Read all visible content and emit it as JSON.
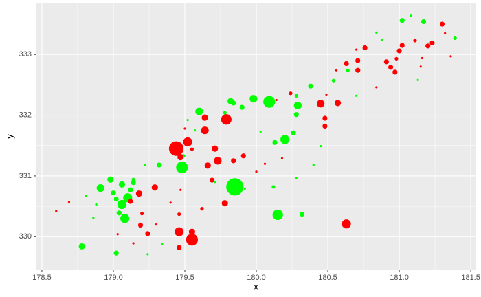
{
  "chart_data": {
    "type": "scatter",
    "x_label": "x",
    "y_label": "y",
    "xlim": [
      178.457,
      181.538
    ],
    "ylim": [
      329.46,
      333.84
    ],
    "xticks": [
      178.5,
      {
        "value": 179,
        "label": "179.0"
      },
      179.5,
      {
        "value": 180,
        "label": "180.0"
      },
      180.5,
      {
        "value": 181,
        "label": "181.0"
      },
      181.5
    ],
    "yticks": [
      330,
      331,
      332,
      333
    ],
    "grid": true,
    "series": [
      {
        "color": "#00ff00",
        "x": [
          181.02,
          181.08,
          181.17,
          181.39,
          181.13,
          180.84,
          180.88,
          180.7,
          180.64,
          180.54,
          180.38,
          180.28,
          180.29,
          180.09,
          179.98,
          179.9,
          179.84,
          179.82,
          179.78,
          179.6,
          179.52,
          180.28,
          180.26,
          180.2,
          180.13,
          180.03,
          180.45,
          180.4,
          180.28,
          180.12,
          179.85,
          179.48,
          179.49,
          179.32,
          179.22,
          178.98,
          179.0,
          179.06,
          179.12,
          179.14,
          178.91,
          179.1,
          179.06,
          179.02,
          179.04,
          179.08,
          178.88,
          178.86,
          178.78,
          178.81,
          179.02,
          179.24,
          179.34,
          180.15,
          180.32,
          179.71,
          179.92,
          179.66,
          179.57,
          179.14
        ],
        "y": [
          333.56,
          333.64,
          333.54,
          333.27,
          332.58,
          333.36,
          333.24,
          332.32,
          332.74,
          332.57,
          332.48,
          332.32,
          332.16,
          332.22,
          332.27,
          332.13,
          332.2,
          332.23,
          332.04,
          332.06,
          331.92,
          332.01,
          331.71,
          331.6,
          331.55,
          331.73,
          331.49,
          331.18,
          330.97,
          330.82,
          330.82,
          331.14,
          331.33,
          331.18,
          331.18,
          330.94,
          330.72,
          330.86,
          330.77,
          330.89,
          330.8,
          330.64,
          330.53,
          330.62,
          330.39,
          330.3,
          330.53,
          330.31,
          329.84,
          330.67,
          329.73,
          329.71,
          329.88,
          330.36,
          330.37,
          330.9,
          330.79,
          331.18,
          331.75,
          330.94
        ],
        "size": [
          3,
          1,
          3,
          2,
          1,
          1,
          1,
          1,
          2,
          2,
          3,
          2,
          5,
          8,
          5,
          3,
          3,
          4,
          2,
          5,
          1,
          3,
          3,
          6,
          3,
          1,
          1,
          1,
          1,
          2,
          12,
          8,
          2,
          3,
          1,
          4,
          3,
          4,
          3,
          3,
          5,
          6,
          6,
          3,
          3,
          6,
          1,
          1,
          4,
          1,
          3,
          1,
          1,
          7,
          3,
          1,
          1,
          1,
          1,
          2
        ]
      },
      {
        "color": "#ff0000",
        "x": [
          181.3,
          181.32,
          181.23,
          181.2,
          181.11,
          181.02,
          181.0,
          180.98,
          180.94,
          180.91,
          180.97,
          181.16,
          181.15,
          181.36,
          180.76,
          180.7,
          180.71,
          180.71,
          180.63,
          180.56,
          180.49,
          180.57,
          180.45,
          180.48,
          180.48,
          180.24,
          179.79,
          179.64,
          179.64,
          179.55,
          179.52,
          179.44,
          179.47,
          179.5,
          179.71,
          179.73,
          179.66,
          179.69,
          179.84,
          179.91,
          179.78,
          179.55,
          179.55,
          179.46,
          179.62,
          179.46,
          179.47,
          179.4,
          179.29,
          179.18,
          179.12,
          179.2,
          179.19,
          179.24,
          179.14,
          179.3,
          179.46,
          179.03,
          178.69,
          178.6,
          180.63,
          180.0,
          180.06,
          180.18,
          180.84,
          180.14
        ],
        "y": [
          333.5,
          333.35,
          333.19,
          333.14,
          333.23,
          333.15,
          333.06,
          332.93,
          332.79,
          332.88,
          332.71,
          332.94,
          332.8,
          332.97,
          333.11,
          333.08,
          332.9,
          332.74,
          332.85,
          332.74,
          332.34,
          332.2,
          332.19,
          331.95,
          331.82,
          332.36,
          331.93,
          331.96,
          331.75,
          331.44,
          331.56,
          331.45,
          331.31,
          331.78,
          331.45,
          331.25,
          331.17,
          330.93,
          331.25,
          331.33,
          330.55,
          330.08,
          329.95,
          330.08,
          330.46,
          330.37,
          330.77,
          330.56,
          330.81,
          330.71,
          330.58,
          330.38,
          330.19,
          330.05,
          329.89,
          330.2,
          329.82,
          330.04,
          330.57,
          330.42,
          330.21,
          331.07,
          331.2,
          331.29,
          332.46,
          332.25
        ],
        "size": [
          3,
          1,
          3,
          3,
          2,
          3,
          3,
          2,
          3,
          3,
          3,
          1,
          1,
          1,
          3,
          1,
          3,
          3,
          3,
          1,
          1,
          4,
          5,
          3,
          3,
          2,
          7,
          4,
          5,
          2,
          6,
          10,
          4,
          1,
          4,
          5,
          4,
          3,
          3,
          3,
          4,
          4,
          8,
          6,
          2,
          2,
          1,
          1,
          4,
          4,
          3,
          2,
          3,
          3,
          1,
          1,
          3,
          1,
          1,
          1,
          6,
          1,
          1,
          1,
          1,
          1
        ]
      }
    ]
  }
}
